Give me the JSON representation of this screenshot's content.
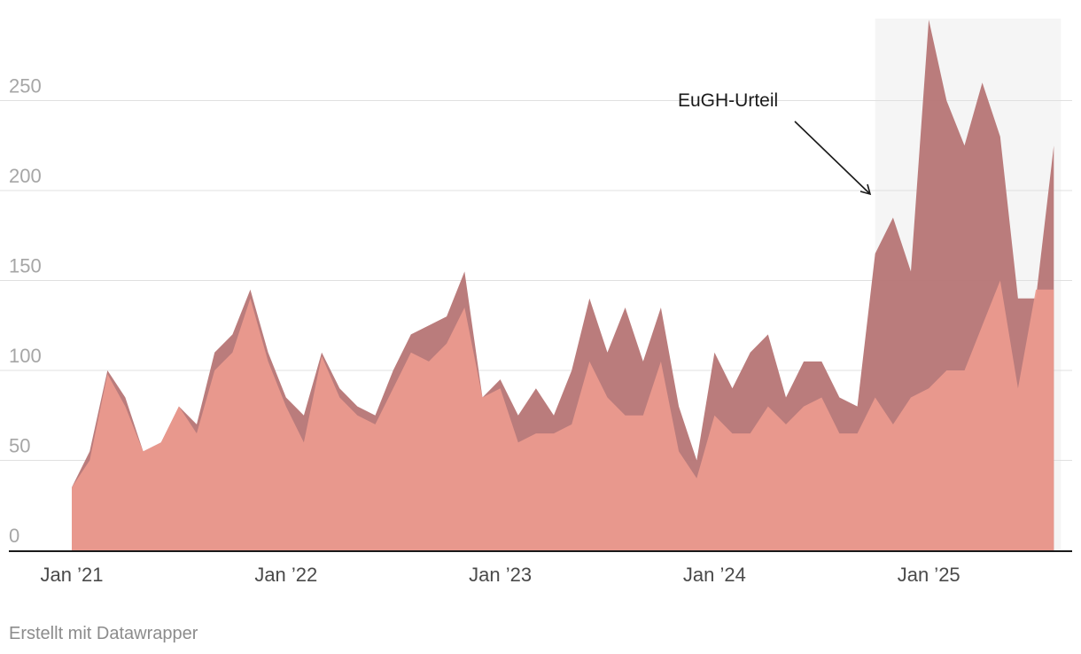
{
  "chart_data": {
    "type": "area",
    "stacked": false,
    "x": [
      "2021-01",
      "2021-02",
      "2021-03",
      "2021-04",
      "2021-05",
      "2021-06",
      "2021-07",
      "2021-08",
      "2021-09",
      "2021-10",
      "2021-11",
      "2021-12",
      "2022-01",
      "2022-02",
      "2022-03",
      "2022-04",
      "2022-05",
      "2022-06",
      "2022-07",
      "2022-08",
      "2022-09",
      "2022-10",
      "2022-11",
      "2022-12",
      "2023-01",
      "2023-02",
      "2023-03",
      "2023-04",
      "2023-05",
      "2023-06",
      "2023-07",
      "2023-08",
      "2023-09",
      "2023-10",
      "2023-11",
      "2023-12",
      "2024-01",
      "2024-02",
      "2024-03",
      "2024-04",
      "2024-05",
      "2024-06",
      "2024-07",
      "2024-08",
      "2024-09",
      "2024-10",
      "2024-11",
      "2024-12",
      "2025-01",
      "2025-02",
      "2025-03",
      "2025-04",
      "2025-05",
      "2025-06",
      "2025-07",
      "2025-08"
    ],
    "series": [
      {
        "color": "#b87878",
        "values": [
          35,
          55,
          100,
          85,
          55,
          60,
          80,
          70,
          110,
          120,
          145,
          110,
          85,
          75,
          110,
          90,
          80,
          75,
          100,
          120,
          125,
          130,
          155,
          85,
          95,
          75,
          90,
          75,
          100,
          140,
          110,
          135,
          105,
          135,
          80,
          50,
          110,
          90,
          110,
          120,
          85,
          105,
          105,
          85,
          80,
          165,
          185,
          155,
          295,
          250,
          225,
          260,
          230,
          140,
          140,
          225
        ]
      },
      {
        "color": "#ec9a8e",
        "values": [
          35,
          50,
          98,
          80,
          55,
          60,
          80,
          65,
          100,
          110,
          140,
          105,
          80,
          60,
          108,
          85,
          75,
          70,
          90,
          110,
          105,
          115,
          135,
          85,
          90,
          60,
          65,
          65,
          70,
          105,
          85,
          75,
          75,
          105,
          55,
          40,
          75,
          65,
          65,
          80,
          70,
          80,
          85,
          65,
          65,
          85,
          70,
          85,
          90,
          100,
          100,
          125,
          150,
          90,
          145,
          145
        ]
      }
    ],
    "yticks": [
      0,
      50,
      100,
      150,
      200,
      250
    ],
    "ylim": [
      0,
      295
    ],
    "xticks": [
      {
        "x": "2021-01",
        "label": "Jan ’21"
      },
      {
        "x": "2022-01",
        "label": "Jan ’22"
      },
      {
        "x": "2023-01",
        "label": "Jan ’23"
      },
      {
        "x": "2024-01",
        "label": "Jan ’24"
      },
      {
        "x": "2025-01",
        "label": "Jan ’25"
      }
    ],
    "highlight": {
      "from": "2024-10",
      "to": "2025-08",
      "color": "#f5f5f5"
    },
    "annotation": {
      "text": "EuGH-Urteil",
      "x": "2024-10",
      "y": 200
    },
    "grid": true,
    "credit": "Erstellt mit Datawrapper"
  }
}
